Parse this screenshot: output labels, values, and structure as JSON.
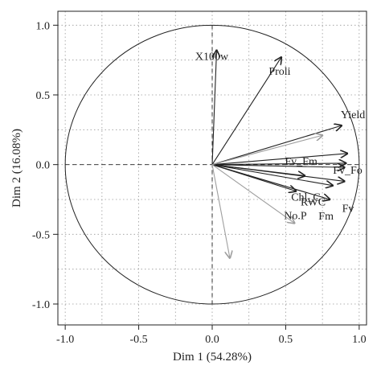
{
  "chart_data": {
    "type": "scatter",
    "subtype": "pca-variables-factor-map",
    "xlabel": "Dim 1 (54.28%)",
    "ylabel": "Dim 2 (16.08%)",
    "xlim": [
      -1.05,
      1.05
    ],
    "ylim": [
      -1.15,
      1.1
    ],
    "x_ticks": [
      -1.0,
      -0.5,
      0.0,
      0.5,
      1.0
    ],
    "y_ticks": [
      -1.0,
      -0.5,
      0.0,
      0.5,
      1.0
    ],
    "x_tick_labels": [
      "-1.0",
      "-0.5",
      "0.0",
      "0.5",
      "1.0"
    ],
    "y_tick_labels": [
      "-1.0",
      "-0.5",
      "0.0",
      "0.5",
      "1.0"
    ],
    "grid": true,
    "unit_circle": true,
    "colors": {
      "active": "#222222",
      "supplementary": "#9e9e9e"
    },
    "variables": [
      {
        "name": "X100w",
        "x": 0.03,
        "y": 0.82,
        "type": "active"
      },
      {
        "name": "Proli",
        "x": 0.47,
        "y": 0.77,
        "type": "active"
      },
      {
        "name": "Yield",
        "x": 0.88,
        "y": 0.28,
        "type": "active"
      },
      {
        "name": "Fv_Fo",
        "x": 0.92,
        "y": 0.08,
        "type": "active"
      },
      {
        "name": "Fv_Fm",
        "x": 0.91,
        "y": 0.01,
        "type": "active"
      },
      {
        "name": "",
        "x": 0.9,
        "y": -0.02,
        "type": "active"
      },
      {
        "name": "Fv",
        "x": 0.9,
        "y": -0.12,
        "type": "active"
      },
      {
        "name": "Chl_C",
        "x": 0.63,
        "y": -0.08,
        "type": "active"
      },
      {
        "name": "RWC",
        "x": 0.82,
        "y": -0.15,
        "type": "active"
      },
      {
        "name": "Fm",
        "x": 0.8,
        "y": -0.25,
        "type": "active"
      },
      {
        "name": "No.P",
        "x": 0.57,
        "y": -0.19,
        "type": "active"
      },
      {
        "name": "",
        "x": 0.75,
        "y": 0.21,
        "type": "supplementary"
      },
      {
        "name": "",
        "x": 0.56,
        "y": -0.42,
        "type": "supplementary"
      },
      {
        "name": "",
        "x": 0.12,
        "y": -0.67,
        "type": "supplementary"
      }
    ]
  }
}
